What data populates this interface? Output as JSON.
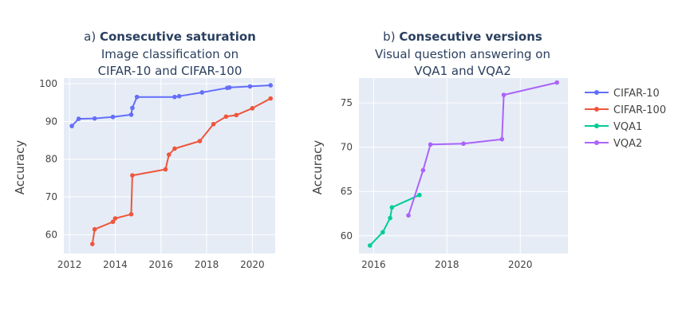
{
  "colors": {
    "plot_bg": "#e5ecf6",
    "grid": "#ffffff",
    "text": "#444444",
    "title": "#2a3f5f"
  },
  "chart_data": [
    {
      "type": "line",
      "title_prefix": "a) ",
      "title_bold": "Consecutive saturation",
      "subtitle_lines": [
        "Image classification on",
        "CIFAR-10 and CIFAR-100"
      ],
      "ylabel": "Accuracy",
      "xlim": [
        2011.75,
        2021.0
      ],
      "ylim": [
        55,
        101.5
      ],
      "xticks": [
        2012,
        2014,
        2016,
        2018,
        2020
      ],
      "xtick_labels": [
        "2012",
        "2014",
        "2016",
        "2018",
        "2020"
      ],
      "yticks": [
        60,
        70,
        80,
        90,
        100
      ],
      "ytick_labels": [
        "60",
        "70",
        "80",
        "90",
        "100"
      ],
      "series": [
        {
          "name": "CIFAR-10",
          "color": "#636efa",
          "x": [
            2012.1,
            2012.4,
            2013.1,
            2013.9,
            2014.7,
            2014.75,
            2014.95,
            2016.6,
            2016.8,
            2017.8,
            2018.9,
            2019.0,
            2019.9,
            2020.8
          ],
          "y": [
            88.8,
            90.7,
            90.8,
            91.2,
            91.8,
            93.6,
            96.5,
            96.5,
            96.7,
            97.7,
            98.9,
            99.0,
            99.3,
            99.6
          ]
        },
        {
          "name": "CIFAR-100",
          "color": "#ef553b",
          "x": [
            2013.0,
            2013.1,
            2013.9,
            2014.0,
            2014.7,
            2014.75,
            2016.2,
            2016.35,
            2016.6,
            2017.7,
            2018.3,
            2018.85,
            2019.3,
            2020.0,
            2020.8
          ],
          "y": [
            57.5,
            61.4,
            63.4,
            64.3,
            65.4,
            75.7,
            77.3,
            81.2,
            82.8,
            84.8,
            89.3,
            91.3,
            91.7,
            93.5,
            96.1
          ]
        }
      ]
    },
    {
      "type": "line",
      "title_prefix": "b) ",
      "title_bold": "Consecutive versions",
      "subtitle_lines": [
        "Visual question answering on",
        "VQA1 and VQA2"
      ],
      "ylabel": "Accuracy",
      "xlim": [
        2015.6,
        2021.3
      ],
      "ylim": [
        58.0,
        77.8
      ],
      "xticks": [
        2016,
        2018,
        2020
      ],
      "xtick_labels": [
        "2016",
        "2018",
        "2020"
      ],
      "yticks": [
        60,
        65,
        70,
        75
      ],
      "ytick_labels": [
        "60",
        "65",
        "70",
        "75"
      ],
      "series": [
        {
          "name": "VQA1",
          "color": "#00cc96",
          "x": [
            2015.9,
            2016.25,
            2016.45,
            2016.5,
            2017.25
          ],
          "y": [
            58.9,
            60.4,
            62.0,
            63.2,
            64.6
          ]
        },
        {
          "name": "VQA2",
          "color": "#ab63fa",
          "x": [
            2016.95,
            2017.35,
            2017.55,
            2018.45,
            2019.5,
            2019.55,
            2021.0
          ],
          "y": [
            62.3,
            67.4,
            70.3,
            70.4,
            70.9,
            75.9,
            77.3
          ]
        }
      ]
    }
  ],
  "legend": {
    "placement": "right",
    "items": [
      {
        "name": "CIFAR-10",
        "color": "#636efa"
      },
      {
        "name": "CIFAR-100",
        "color": "#ef553b"
      },
      {
        "name": "VQA1",
        "color": "#00cc96"
      },
      {
        "name": "VQA2",
        "color": "#ab63fa"
      }
    ]
  }
}
